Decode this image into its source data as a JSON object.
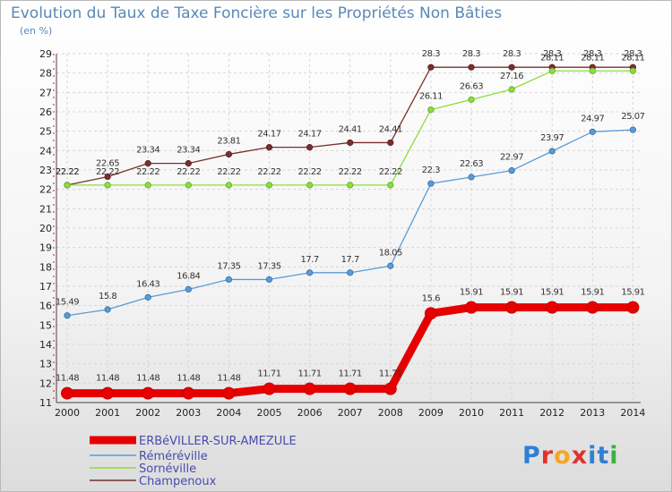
{
  "chart_data": {
    "type": "line",
    "title": "Evolution du Taux de Taxe Foncière sur les Propriétés Non Bâties",
    "subtitle": "(en %)",
    "x": [
      "2000",
      "2001",
      "2002",
      "2003",
      "2004",
      "2005",
      "2006",
      "2007",
      "2008",
      "2009",
      "2010",
      "2011",
      "2012",
      "2013",
      "2014"
    ],
    "ylim": [
      11,
      29
    ],
    "yticks": [
      "11",
      "12",
      "13",
      "14",
      "15",
      "16",
      "17",
      "18",
      "19",
      "20",
      "21",
      "22",
      "23",
      "24",
      "25",
      "26",
      "27",
      "28",
      "29"
    ],
    "grid": true,
    "legend_position": "bottom-left",
    "series": [
      {
        "name": "ERBéVILLER-SUR-AMEZULE",
        "color": "#e60000",
        "marker_edge": "#cc0000",
        "values": [
          11.48,
          11.48,
          11.48,
          11.48,
          11.48,
          11.71,
          11.71,
          11.71,
          11.71,
          15.6,
          15.91,
          15.91,
          15.91,
          15.91,
          15.91
        ],
        "labels": [
          "11.48",
          "11.48",
          "11.48",
          "11.48",
          "11.48",
          "11.71",
          "11.71",
          "11.71",
          "11.71",
          "15.6",
          "15.91",
          "15.91",
          "15.91",
          "15.91",
          "15.91"
        ]
      },
      {
        "name": "Réméréville",
        "color": "#5b9bd5",
        "marker_edge": "#2e6ea6",
        "values": [
          15.49,
          15.8,
          16.43,
          16.84,
          17.35,
          17.35,
          17.7,
          17.7,
          18.05,
          22.3,
          22.63,
          22.97,
          23.97,
          24.97,
          25.07
        ],
        "labels": [
          "15.49",
          "15.8",
          "16.43",
          "16.84",
          "17.35",
          "17.35",
          "17.7",
          "17.7",
          "18.05",
          "22.3",
          "22.63",
          "22.97",
          "23.97",
          "24.97",
          "25.07"
        ]
      },
      {
        "name": "Sornéville",
        "color": "#8fdc3c",
        "marker_edge": "#5fa82a",
        "values": [
          22.22,
          22.22,
          22.22,
          22.22,
          22.22,
          22.22,
          22.22,
          22.22,
          22.22,
          26.11,
          26.63,
          27.16,
          28.11,
          28.11,
          28.11
        ],
        "labels": [
          "22.22",
          "22.22",
          "22.22",
          "22.22",
          "22.22",
          "22.22",
          "22.22",
          "22.22",
          "22.22",
          "26.11",
          "26.63",
          "27.16",
          "28.11",
          "28.11",
          "28.11"
        ]
      },
      {
        "name": "Champenoux",
        "color": "#7b2e2e",
        "marker_edge": "#5a1a1a",
        "values": [
          22.22,
          22.65,
          23.34,
          23.34,
          23.81,
          24.17,
          24.17,
          24.41,
          24.41,
          28.3,
          28.3,
          28.3,
          28.3,
          28.3,
          28.3
        ],
        "labels": [
          "22.22",
          "22.65",
          "23.34",
          "23.34",
          "23.81",
          "24.17",
          "24.17",
          "24.41",
          "24.41",
          "28.3",
          "28.3",
          "28.3",
          "28.3",
          "28.3",
          "28.3"
        ]
      }
    ]
  },
  "logo": {
    "text": "Proxiti"
  }
}
